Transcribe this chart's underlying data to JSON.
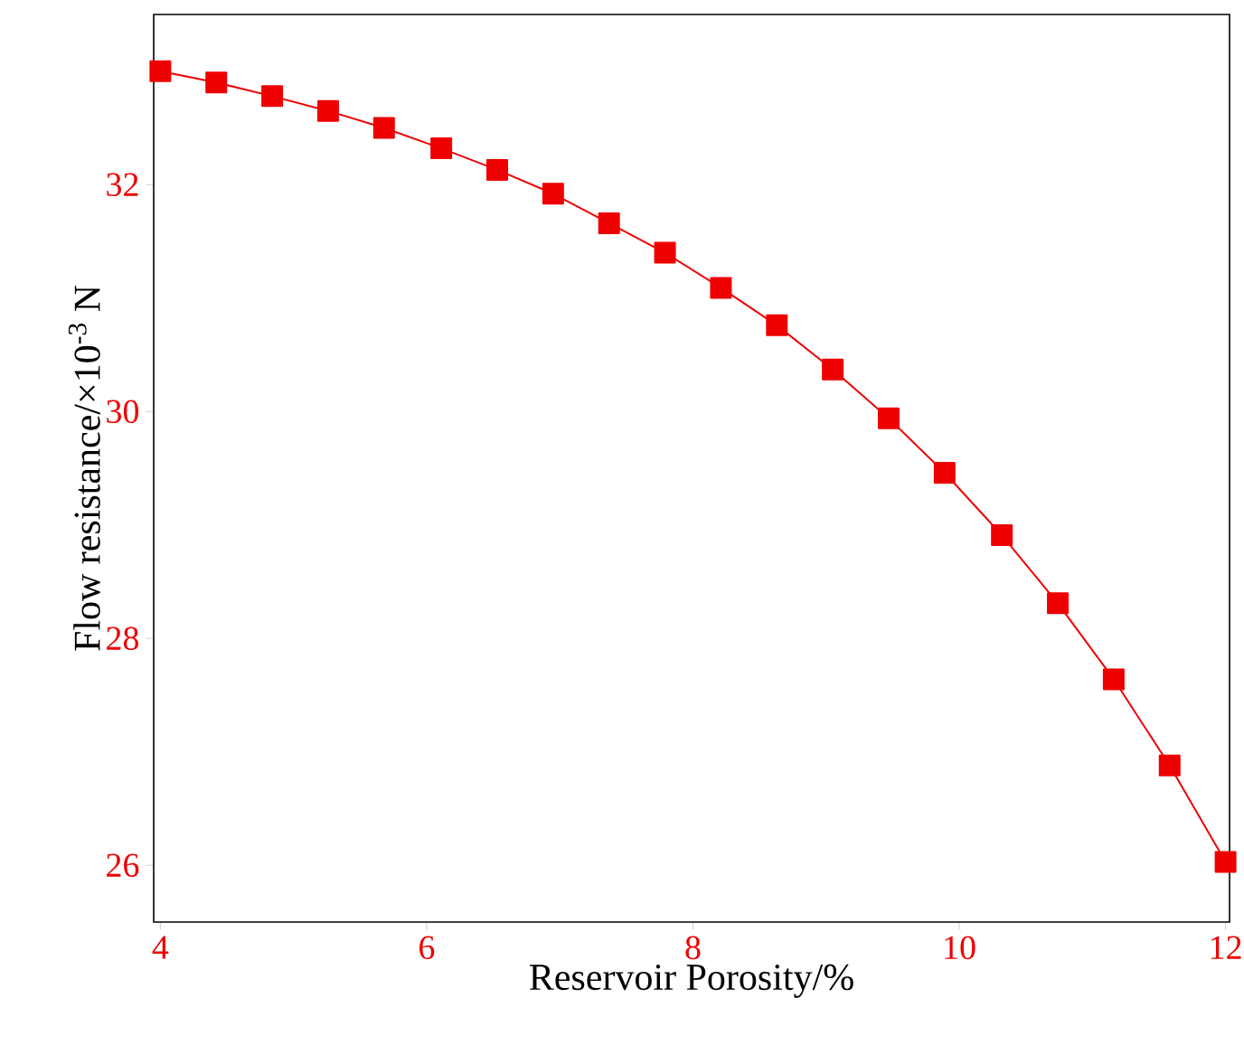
{
  "chart_data": {
    "type": "line",
    "xlabel": "Reservoir Porosity/%",
    "ylabel": "Flow resistance/×10$^{-3}$ N",
    "x": [
      4,
      4.42,
      4.84,
      5.26,
      5.68,
      6.11,
      6.53,
      6.95,
      7.37,
      7.79,
      8.21,
      8.63,
      9.05,
      9.47,
      9.89,
      10.32,
      10.74,
      11.16,
      11.58,
      12
    ],
    "series": [
      {
        "color": "#ee0000",
        "values": [
          33.0,
          32.9,
          32.78,
          32.65,
          32.5,
          32.32,
          32.13,
          31.92,
          31.66,
          31.4,
          31.09,
          30.76,
          30.37,
          29.94,
          29.46,
          28.91,
          28.31,
          27.64,
          26.88,
          26.03
        ]
      }
    ],
    "xlim": [
      3.95,
      12.03
    ],
    "ylim": [
      25.5,
      33.5
    ],
    "xticks": [
      4,
      6,
      8,
      10,
      12
    ],
    "yticks": [
      26,
      28,
      30,
      32
    ],
    "grid": false,
    "marker": "square",
    "line_style": "solid"
  }
}
